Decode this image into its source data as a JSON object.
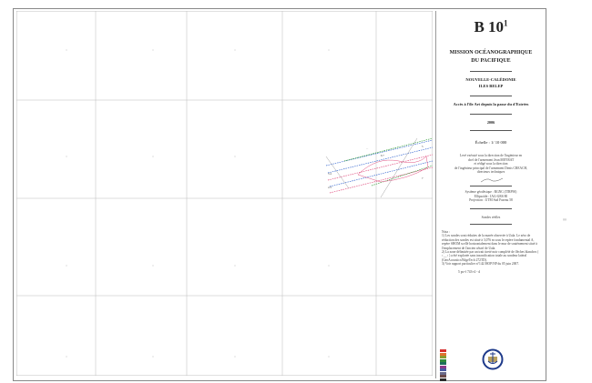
{
  "chart_id": "B 10",
  "chart_id_sup": "1",
  "organization": [
    "MISSION OCÉANOGRAPHIQUE",
    "DU PACIFIQUE"
  ],
  "region": [
    "NOUVELLE-CALÉDONIE",
    "ILES BELEP"
  ],
  "subject": "Accès à l'île Art depuis la passe du d'Estrées",
  "year": "2006",
  "scale": "Échelle : 1/ 10 000",
  "survey_credits": [
    "Levé exécuté sous la direction de l'ingénieur en",
    "chef de l'armement Jean MEYRAT",
    "et rédigé sous la direction",
    "de l'ingénieur principal de l'armement Denis CREACH,",
    "directeurs techniques"
  ],
  "geodesy": [
    "Système géodésique : RGNC (ITRF90)",
    "Ellipsoïde : IAG-GRS 80",
    "Projection : UTM Sud Fuseau 58"
  ],
  "soundings": "Sondes réelles",
  "notes_title": "Nota :",
  "notes": [
    "1) Les sondes sont réduites de la marée observée à Uala. Le zéro de réduction des sondes est situé à 3,076 m sous le repère fondamental A, repère SHOM scellé horizontalement dans le mur de soutènement situé à l'emplacement de l'ancien wharf de Uala.",
    "2) La zone délimitée par un trait tireté noir complété de flèches blanches ( ↑__↑ ) a été explorée sans insonification totale au sondeur latéral (GeoAcoustics/EdgeTech 272TD).",
    "3) Voir rapport particulier n°142 MOP/NP du 05 juin 2007."
  ],
  "signature_note": "5 ps+f 743+4 - d",
  "legend_colors": [
    "#d63030",
    "#e07030",
    "#8a9a30",
    "#2f8a3a",
    "#1e6e5a",
    "#8a3a8a",
    "#4a5aa0",
    "#6a6a8a",
    "#6a4a4a",
    "#2a2a2a"
  ],
  "logo": "SHOM emblem",
  "colors": {
    "sounding_blue": "#3a6ad0",
    "sounding_pink": "#e05080",
    "sounding_green": "#3aa040",
    "logo_ring": "#1e3a8a",
    "logo_gold": "#b8a060"
  }
}
